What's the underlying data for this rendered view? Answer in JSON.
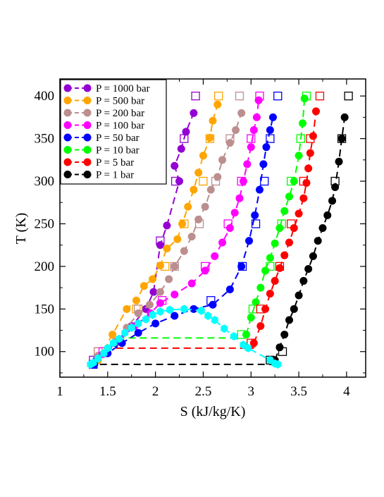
{
  "chart_data": {
    "type": "scatter",
    "xlabel": "S (kJ/kg/K)",
    "ylabel": "T (K)",
    "xlim": [
      1,
      4.2
    ],
    "ylim": [
      70,
      420
    ],
    "x_ticks": [
      1,
      1.5,
      2,
      2.5,
      3,
      3.5,
      4
    ],
    "y_ticks": [
      100,
      150,
      200,
      250,
      300,
      350,
      400
    ],
    "x_tick_labels": [
      "1",
      "1.5",
      "2",
      "2.5",
      "3",
      "3.5",
      "4"
    ],
    "y_tick_labels": [
      "100",
      "150",
      "200",
      "250",
      "300",
      "350",
      "400"
    ],
    "grid": false,
    "legend_position": "top-left",
    "series": [
      {
        "name": "P = 1000 bar",
        "color": "#9400d3",
        "points": [
          [
            1.38,
            90
          ],
          [
            1.58,
            110
          ],
          [
            1.75,
            130
          ],
          [
            1.9,
            150
          ],
          [
            1.98,
            170
          ],
          [
            2.05,
            225
          ],
          [
            2.12,
            248
          ],
          [
            2.25,
            300
          ],
          [
            2.2,
            318
          ],
          [
            2.27,
            338
          ],
          [
            2.32,
            358
          ],
          [
            2.4,
            380
          ]
        ],
        "reference_points": [
          [
            1.35,
            90
          ],
          [
            2.05,
            230
          ],
          [
            2.21,
            300
          ],
          [
            2.3,
            350
          ],
          [
            2.42,
            400
          ]
        ]
      },
      {
        "name": "P = 500 bar",
        "color": "#ffa500",
        "points": [
          [
            1.4,
            90
          ],
          [
            1.55,
            120
          ],
          [
            1.7,
            150
          ],
          [
            1.8,
            160
          ],
          [
            1.88,
            177
          ],
          [
            1.97,
            185
          ],
          [
            2.05,
            201
          ],
          [
            2.12,
            221
          ],
          [
            2.23,
            232
          ],
          [
            2.28,
            250
          ],
          [
            2.34,
            270
          ],
          [
            2.4,
            290
          ],
          [
            2.45,
            310
          ],
          [
            2.5,
            330
          ],
          [
            2.57,
            351
          ],
          [
            2.6,
            371
          ],
          [
            2.65,
            390
          ]
        ],
        "reference_points": [
          [
            1.4,
            100
          ],
          [
            1.8,
            150
          ],
          [
            2.1,
            200
          ],
          [
            2.3,
            250
          ],
          [
            2.5,
            300
          ],
          [
            2.57,
            350
          ],
          [
            2.66,
            400
          ]
        ]
      },
      {
        "name": "P = 200 bar",
        "color": "#bc8f8f",
        "points": [
          [
            1.4,
            95
          ],
          [
            1.58,
            112
          ],
          [
            1.7,
            128
          ],
          [
            1.82,
            145
          ],
          [
            1.94,
            155
          ],
          [
            2.05,
            170
          ],
          [
            2.14,
            185
          ],
          [
            2.2,
            200
          ],
          [
            2.3,
            218
          ],
          [
            2.38,
            235
          ],
          [
            2.45,
            255
          ],
          [
            2.52,
            270
          ],
          [
            2.58,
            290
          ],
          [
            2.65,
            305
          ],
          [
            2.7,
            325
          ],
          [
            2.78,
            345
          ],
          [
            2.84,
            360
          ],
          [
            2.9,
            380
          ]
        ],
        "reference_points": [
          [
            1.4,
            100
          ],
          [
            1.82,
            150
          ],
          [
            2.2,
            200
          ],
          [
            2.46,
            250
          ],
          [
            2.63,
            300
          ],
          [
            2.78,
            350
          ],
          [
            2.88,
            400
          ]
        ]
      },
      {
        "name": "P = 100 bar",
        "color": "#ff00ff",
        "points": [
          [
            1.45,
            97
          ],
          [
            1.62,
            113
          ],
          [
            1.78,
            130
          ],
          [
            1.95,
            145
          ],
          [
            2.05,
            157
          ],
          [
            2.2,
            167
          ],
          [
            2.38,
            180
          ],
          [
            2.52,
            195
          ],
          [
            2.62,
            212
          ],
          [
            2.7,
            228
          ],
          [
            2.78,
            245
          ],
          [
            2.83,
            263
          ],
          [
            2.88,
            280
          ],
          [
            2.92,
            300
          ],
          [
            2.96,
            320
          ],
          [
            3.0,
            340
          ],
          [
            3.03,
            360
          ],
          [
            3.06,
            375
          ],
          [
            3.08,
            395
          ]
        ],
        "reference_points": [
          [
            1.45,
            100
          ],
          [
            2.07,
            160
          ],
          [
            2.52,
            200
          ],
          [
            2.76,
            250
          ],
          [
            2.9,
            300
          ],
          [
            3.0,
            350
          ],
          [
            3.09,
            400
          ]
        ]
      },
      {
        "name": "P = 50 bar",
        "color": "#0000ff",
        "points": [
          [
            1.36,
            85
          ],
          [
            1.5,
            98
          ],
          [
            1.65,
            110
          ],
          [
            1.82,
            122
          ],
          [
            2.0,
            133
          ],
          [
            2.2,
            142
          ],
          [
            2.4,
            150
          ],
          [
            2.6,
            155
          ],
          [
            2.78,
            173
          ],
          [
            2.9,
            200
          ],
          [
            2.98,
            230
          ],
          [
            3.04,
            260
          ],
          [
            3.09,
            290
          ],
          [
            3.13,
            320
          ],
          [
            3.16,
            340
          ],
          [
            3.2,
            360
          ],
          [
            3.23,
            375
          ]
        ],
        "reference_points": [
          [
            1.35,
            85
          ],
          [
            2.58,
            160
          ],
          [
            2.91,
            200
          ],
          [
            3.05,
            250
          ],
          [
            3.14,
            300
          ],
          [
            3.2,
            350
          ],
          [
            3.28,
            400
          ]
        ]
      },
      {
        "name": "P = 10 bar",
        "color": "#00ff00",
        "points": [
          [
            2.95,
            120
          ],
          [
            3.0,
            140
          ],
          [
            3.05,
            158
          ],
          [
            3.1,
            175
          ],
          [
            3.15,
            195
          ],
          [
            3.2,
            210
          ],
          [
            3.25,
            227
          ],
          [
            3.3,
            245
          ],
          [
            3.35,
            265
          ],
          [
            3.4,
            282
          ],
          [
            3.45,
            300
          ],
          [
            3.5,
            330
          ],
          [
            3.54,
            368
          ],
          [
            3.56,
            397
          ]
        ],
        "reference_points": [
          [
            2.9,
            120
          ],
          [
            3.02,
            150
          ],
          [
            3.2,
            200
          ],
          [
            3.32,
            250
          ],
          [
            3.42,
            300
          ],
          [
            3.52,
            350
          ],
          [
            3.58,
            400
          ]
        ]
      },
      {
        "name": "P = 5 bar",
        "color": "#ff0000",
        "points": [
          [
            3.03,
            110
          ],
          [
            3.1,
            130
          ],
          [
            3.15,
            150
          ],
          [
            3.2,
            168
          ],
          [
            3.25,
            183
          ],
          [
            3.3,
            198
          ],
          [
            3.35,
            213
          ],
          [
            3.4,
            228
          ],
          [
            3.45,
            245
          ],
          [
            3.5,
            262
          ],
          [
            3.55,
            280
          ],
          [
            3.58,
            298
          ],
          [
            3.6,
            315
          ],
          [
            3.62,
            333
          ],
          [
            3.65,
            353
          ],
          [
            3.68,
            382
          ]
        ],
        "reference_points": [
          [
            3.0,
            110
          ],
          [
            3.1,
            150
          ],
          [
            3.3,
            200
          ],
          [
            3.42,
            250
          ],
          [
            3.55,
            300
          ],
          [
            3.62,
            350
          ],
          [
            3.72,
            400
          ]
        ]
      },
      {
        "name": "P = 1 bar",
        "color": "#000000",
        "points": [
          [
            3.25,
            90
          ],
          [
            3.3,
            105
          ],
          [
            3.35,
            120
          ],
          [
            3.4,
            137
          ],
          [
            3.45,
            150
          ],
          [
            3.5,
            166
          ],
          [
            3.55,
            183
          ],
          [
            3.6,
            197
          ],
          [
            3.65,
            212
          ],
          [
            3.7,
            230
          ],
          [
            3.75,
            245
          ],
          [
            3.8,
            260
          ],
          [
            3.85,
            277
          ],
          [
            3.88,
            293
          ],
          [
            3.92,
            323
          ],
          [
            3.95,
            350
          ],
          [
            3.98,
            375
          ]
        ],
        "reference_points": [
          [
            3.2,
            90
          ],
          [
            3.33,
            100
          ],
          [
            3.88,
            300
          ],
          [
            3.95,
            350
          ],
          [
            4.02,
            400
          ]
        ]
      }
    ],
    "coexistence_lines": [
      {
        "color": "#000000",
        "x": [
          1.3,
          3.25
        ],
        "y": [
          85,
          85
        ]
      },
      {
        "color": "#ff0000",
        "x": [
          1.47,
          3.03
        ],
        "y": [
          104,
          104
        ]
      },
      {
        "color": "#00ff00",
        "x": [
          1.6,
          2.9
        ],
        "y": [
          116,
          116
        ]
      }
    ],
    "saturation_curve": {
      "color": "#00ffff",
      "points": [
        [
          1.32,
          85
        ],
        [
          1.35,
          87
        ],
        [
          1.4,
          92
        ],
        [
          1.46,
          98
        ],
        [
          1.5,
          104
        ],
        [
          1.56,
          110
        ],
        [
          1.62,
          115
        ],
        [
          1.68,
          122
        ],
        [
          1.75,
          128
        ],
        [
          1.82,
          133
        ],
        [
          1.9,
          138
        ],
        [
          1.97,
          143
        ],
        [
          2.05,
          147
        ],
        [
          2.15,
          149
        ],
        [
          2.3,
          150
        ],
        [
          2.48,
          148
        ],
        [
          2.55,
          142
        ],
        [
          2.62,
          137
        ],
        [
          2.72,
          127
        ],
        [
          2.82,
          118
        ],
        [
          2.92,
          108
        ],
        [
          2.97,
          104
        ],
        [
          3.2,
          90
        ],
        [
          3.25,
          86
        ],
        [
          3.28,
          85
        ]
      ]
    }
  }
}
